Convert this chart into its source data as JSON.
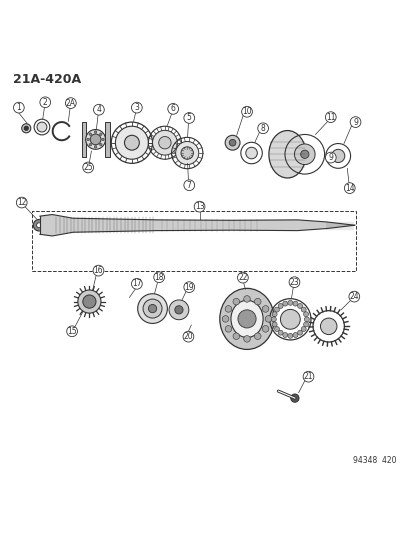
{
  "title": "21A-420A",
  "figure_number": "94348  420",
  "bg_color": "#ffffff"
}
